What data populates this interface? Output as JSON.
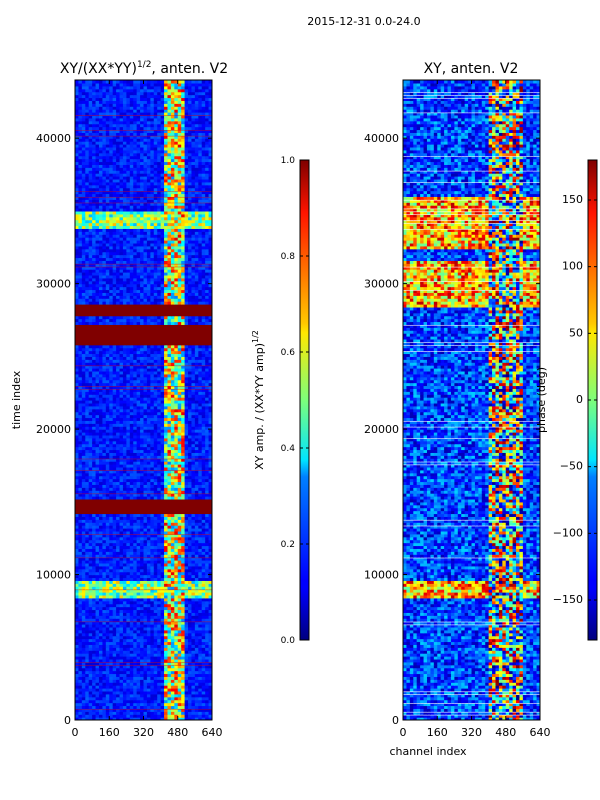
{
  "suptitle": "2015-12-31 0.0-24.0",
  "chart_data": [
    {
      "type": "heatmap",
      "title": "XY/(XX*YY)",
      "title_sup": "1/2",
      "title_suffix": ", anten. V2",
      "xlabel": "",
      "ylabel": "time index",
      "xlim": [
        0,
        640
      ],
      "ylim": [
        0,
        44000
      ],
      "xticks": [
        "0",
        "160",
        "320",
        "480",
        "640"
      ],
      "yticks": [
        "0",
        "10000",
        "20000",
        "30000",
        "40000"
      ],
      "colormap": "jet",
      "colorbar": {
        "label": "XY amp. / (XX*YY amp)",
        "label_sup": "1/2",
        "range": [
          0.0,
          1.0
        ],
        "ticks": [
          "0.0",
          "0.2",
          "0.4",
          "0.6",
          "0.8",
          "1.0"
        ]
      },
      "saturated_time_bands": [
        [
          14200,
          15200
        ],
        [
          25800,
          27200
        ],
        [
          27800,
          28500
        ]
      ],
      "bright_channel_band": [
        410,
        500
      ],
      "noise_rows": [
        8600,
        9000,
        9200,
        34000,
        34600
      ]
    },
    {
      "type": "heatmap",
      "title": "XY, anten. V2",
      "xlabel": "channel index",
      "ylabel": "",
      "xlim": [
        0,
        640
      ],
      "ylim": [
        0,
        44000
      ],
      "xticks": [
        "0",
        "160",
        "320",
        "480",
        "640"
      ],
      "yticks": [
        "0",
        "10000",
        "20000",
        "30000",
        "40000"
      ],
      "colormap": "jet",
      "colorbar": {
        "label": "phase (deg)",
        "range": [
          -180,
          180
        ],
        "ticks": [
          "−150",
          "−100",
          "−50",
          "0",
          "50",
          "100",
          "150"
        ]
      },
      "bright_channel_band": [
        400,
        560
      ],
      "warm_time_bands": [
        [
          8500,
          9500
        ],
        [
          28500,
          31500
        ],
        [
          32500,
          36000
        ]
      ]
    }
  ]
}
